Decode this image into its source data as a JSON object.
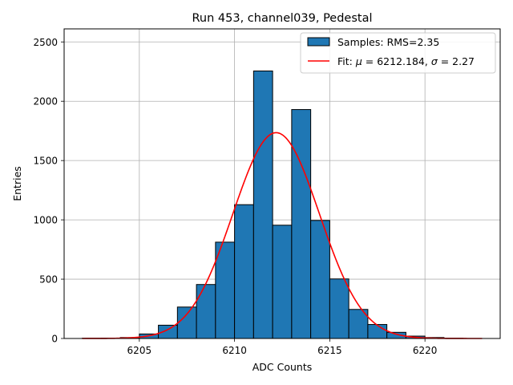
{
  "chart_data": {
    "type": "bar",
    "title": "Run 453, channel039, Pedestal",
    "xlabel": "ADC Counts",
    "ylabel": "Entries",
    "xlim": [
      6201.05,
      6223.95
    ],
    "ylim": [
      0,
      2610
    ],
    "xticks": [
      6205,
      6210,
      6215,
      6220
    ],
    "yticks": [
      0,
      500,
      1000,
      1500,
      2000,
      2500
    ],
    "grid": true,
    "legend_position": "top-right",
    "histogram": {
      "name": "Samples: RMS=2.35",
      "color": "#1f77b4",
      "bin_edges": [
        6202,
        6203,
        6204,
        6205,
        6206,
        6207,
        6208,
        6209,
        6210,
        6211,
        6212,
        6213,
        6214,
        6215,
        6216,
        6217,
        6218,
        6219,
        6220,
        6221,
        6222,
        6223
      ],
      "counts": [
        2,
        3,
        8,
        38,
        112,
        265,
        455,
        812,
        1128,
        2255,
        955,
        1930,
        995,
        502,
        245,
        118,
        52,
        20,
        8,
        2,
        0
      ]
    },
    "fit": {
      "name": "Fit: μ = 6212.184, σ = 2.27",
      "legend_prefix": "Fit: ",
      "mu_symbol": "μ",
      "mu_value": " = 6212.184, ",
      "sigma_symbol": "σ",
      "sigma_value": " = 2.27",
      "color": "#ff0000",
      "mu": 6212.184,
      "sigma": 2.27,
      "amplitude": 1735,
      "x_range": [
        6202,
        6223
      ]
    }
  }
}
